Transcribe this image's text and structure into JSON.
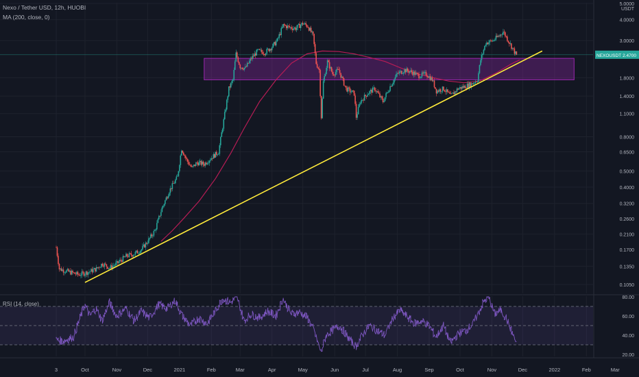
{
  "chart_data": [
    {
      "type": "candlestick",
      "title": "Nexo / Tether USD, 12h, HUOBI",
      "indicator_label": "MA (200, close, 0)",
      "axis_unit": "USDT",
      "y_scale": "log",
      "ylim": [
        0.09,
        5.0
      ],
      "y_ticks": [
        "5.0000",
        "4.0000",
        "3.0000",
        "1.8000",
        "1.4000",
        "1.1000",
        "0.8000",
        "0.6500",
        "0.5000",
        "0.4000",
        "0.3200",
        "0.2600",
        "0.2100",
        "0.1700",
        "0.1350",
        "0.1050"
      ],
      "y_tick_values": [
        5.0,
        4.0,
        3.0,
        1.8,
        1.4,
        1.1,
        0.8,
        0.65,
        0.5,
        0.4,
        0.32,
        0.26,
        0.21,
        0.17,
        0.135,
        0.105
      ],
      "x_ticks": [
        "3",
        "Oct",
        "Nov",
        "Dec",
        "2021",
        "Feb",
        "Mar",
        "Apr",
        "May",
        "Jun",
        "Jul",
        "Aug",
        "Sep",
        "Oct",
        "Nov",
        "Dec",
        "2022",
        "Feb",
        "Mar"
      ],
      "x_tick_dates": [
        "2020-09-03",
        "2020-10-01",
        "2020-11-01",
        "2020-12-01",
        "2021-01-01",
        "2021-02-01",
        "2021-03-01",
        "2021-04-01",
        "2021-05-01",
        "2021-06-01",
        "2021-07-01",
        "2021-08-01",
        "2021-09-01",
        "2021-10-01",
        "2021-11-01",
        "2021-12-01",
        "2022-01-01",
        "2022-02-01",
        "2022-03-01"
      ],
      "price_line": {
        "symbol": "NEXOUSDT",
        "value": 2.47,
        "label": "2.4700"
      },
      "colors": {
        "up": "#26a69a",
        "down": "#ef5350",
        "ma": "#b71c55",
        "trendline": "#ffeb3b",
        "zone": "#9c27b0",
        "price_label_bg": "#26a69a"
      },
      "price_series": [
        {
          "x": "2020-09-03",
          "y": 0.175
        },
        {
          "x": "2020-09-06",
          "y": 0.13
        },
        {
          "x": "2020-09-15",
          "y": 0.125
        },
        {
          "x": "2020-09-25",
          "y": 0.12
        },
        {
          "x": "2020-10-05",
          "y": 0.125
        },
        {
          "x": "2020-10-12",
          "y": 0.13
        },
        {
          "x": "2020-10-18",
          "y": 0.14
        },
        {
          "x": "2020-10-25",
          "y": 0.132
        },
        {
          "x": "2020-11-01",
          "y": 0.14
        },
        {
          "x": "2020-11-10",
          "y": 0.155
        },
        {
          "x": "2020-11-18",
          "y": 0.16
        },
        {
          "x": "2020-11-25",
          "y": 0.17
        },
        {
          "x": "2020-12-01",
          "y": 0.19
        },
        {
          "x": "2020-12-08",
          "y": 0.22
        },
        {
          "x": "2020-12-15",
          "y": 0.3
        },
        {
          "x": "2020-12-22",
          "y": 0.38
        },
        {
          "x": "2020-12-30",
          "y": 0.46
        },
        {
          "x": "2021-01-03",
          "y": 0.68
        },
        {
          "x": "2021-01-08",
          "y": 0.58
        },
        {
          "x": "2021-01-13",
          "y": 0.52
        },
        {
          "x": "2021-01-18",
          "y": 0.56
        },
        {
          "x": "2021-01-25",
          "y": 0.55
        },
        {
          "x": "2021-02-01",
          "y": 0.6
        },
        {
          "x": "2021-02-08",
          "y": 0.65
        },
        {
          "x": "2021-02-13",
          "y": 1.0
        },
        {
          "x": "2021-02-18",
          "y": 1.55
        },
        {
          "x": "2021-02-22",
          "y": 1.75
        },
        {
          "x": "2021-02-25",
          "y": 2.5
        },
        {
          "x": "2021-03-01",
          "y": 2.1
        },
        {
          "x": "2021-03-06",
          "y": 2.05
        },
        {
          "x": "2021-03-12",
          "y": 2.35
        },
        {
          "x": "2021-03-18",
          "y": 2.6
        },
        {
          "x": "2021-03-25",
          "y": 2.55
        },
        {
          "x": "2021-04-01",
          "y": 2.75
        },
        {
          "x": "2021-04-06",
          "y": 3.0
        },
        {
          "x": "2021-04-12",
          "y": 3.7
        },
        {
          "x": "2021-04-18",
          "y": 3.6
        },
        {
          "x": "2021-04-24",
          "y": 3.55
        },
        {
          "x": "2021-05-01",
          "y": 3.8
        },
        {
          "x": "2021-05-06",
          "y": 3.65
        },
        {
          "x": "2021-05-11",
          "y": 3.2
        },
        {
          "x": "2021-05-14",
          "y": 2.2
        },
        {
          "x": "2021-05-17",
          "y": 2.0
        },
        {
          "x": "2021-05-19",
          "y": 1.05
        },
        {
          "x": "2021-05-21",
          "y": 1.7
        },
        {
          "x": "2021-05-25",
          "y": 2.25
        },
        {
          "x": "2021-05-30",
          "y": 1.9
        },
        {
          "x": "2021-06-05",
          "y": 2.0
        },
        {
          "x": "2021-06-12",
          "y": 1.55
        },
        {
          "x": "2021-06-20",
          "y": 1.45
        },
        {
          "x": "2021-06-22",
          "y": 1.05
        },
        {
          "x": "2021-06-26",
          "y": 1.3
        },
        {
          "x": "2021-07-03",
          "y": 1.45
        },
        {
          "x": "2021-07-10",
          "y": 1.55
        },
        {
          "x": "2021-07-18",
          "y": 1.3
        },
        {
          "x": "2021-07-25",
          "y": 1.6
        },
        {
          "x": "2021-08-01",
          "y": 1.9
        },
        {
          "x": "2021-08-08",
          "y": 2.0
        },
        {
          "x": "2021-08-15",
          "y": 1.95
        },
        {
          "x": "2021-08-22",
          "y": 1.85
        },
        {
          "x": "2021-08-29",
          "y": 1.9
        },
        {
          "x": "2021-09-04",
          "y": 1.75
        },
        {
          "x": "2021-09-08",
          "y": 1.5
        },
        {
          "x": "2021-09-15",
          "y": 1.55
        },
        {
          "x": "2021-09-22",
          "y": 1.4
        },
        {
          "x": "2021-09-29",
          "y": 1.55
        },
        {
          "x": "2021-10-06",
          "y": 1.6
        },
        {
          "x": "2021-10-12",
          "y": 1.65
        },
        {
          "x": "2021-10-18",
          "y": 1.75
        },
        {
          "x": "2021-10-21",
          "y": 2.3
        },
        {
          "x": "2021-10-26",
          "y": 2.9
        },
        {
          "x": "2021-11-02",
          "y": 3.0
        },
        {
          "x": "2021-11-08",
          "y": 3.2
        },
        {
          "x": "2021-11-12",
          "y": 3.4
        },
        {
          "x": "2021-11-17",
          "y": 3.0
        },
        {
          "x": "2021-11-21",
          "y": 2.7
        },
        {
          "x": "2021-11-25",
          "y": 2.45
        }
      ],
      "ma_series": [
        {
          "x": "2020-12-14",
          "y": 0.19
        },
        {
          "x": "2020-12-25",
          "y": 0.22
        },
        {
          "x": "2021-01-05",
          "y": 0.26
        },
        {
          "x": "2021-01-20",
          "y": 0.33
        },
        {
          "x": "2021-02-05",
          "y": 0.45
        },
        {
          "x": "2021-02-20",
          "y": 0.64
        },
        {
          "x": "2021-03-05",
          "y": 0.9
        },
        {
          "x": "2021-03-20",
          "y": 1.3
        },
        {
          "x": "2021-04-05",
          "y": 1.75
        },
        {
          "x": "2021-04-20",
          "y": 2.2
        },
        {
          "x": "2021-05-05",
          "y": 2.5
        },
        {
          "x": "2021-05-20",
          "y": 2.6
        },
        {
          "x": "2021-06-05",
          "y": 2.58
        },
        {
          "x": "2021-06-20",
          "y": 2.5
        },
        {
          "x": "2021-07-05",
          "y": 2.38
        },
        {
          "x": "2021-07-20",
          "y": 2.25
        },
        {
          "x": "2021-08-05",
          "y": 2.05
        },
        {
          "x": "2021-08-20",
          "y": 1.9
        },
        {
          "x": "2021-09-05",
          "y": 1.8
        },
        {
          "x": "2021-09-20",
          "y": 1.72
        },
        {
          "x": "2021-10-05",
          "y": 1.68
        },
        {
          "x": "2021-10-20",
          "y": 1.72
        },
        {
          "x": "2021-11-05",
          "y": 1.92
        },
        {
          "x": "2021-11-20",
          "y": 2.18
        },
        {
          "x": "2021-11-28",
          "y": 2.3
        }
      ],
      "trendline": [
        {
          "x": "2020-10-01",
          "y": 0.108
        },
        {
          "x": "2021-12-20",
          "y": 2.6
        }
      ],
      "zone": {
        "x0": "2021-01-25",
        "y0": 1.75,
        "x1": "2022-01-20",
        "y1": 2.35
      }
    },
    {
      "type": "line",
      "title": "RSI (14, close)",
      "ylim": [
        20,
        80
      ],
      "y_ticks": [
        "80.00",
        "60.00",
        "40.00",
        "20.00"
      ],
      "y_tick_values": [
        80,
        60,
        40,
        20
      ],
      "bands": {
        "upper": 70,
        "middle": 50,
        "lower": 30
      },
      "colors": {
        "line": "#7e57c2",
        "band": "#7e57c2"
      },
      "series": [
        {
          "x": "2020-09-03",
          "y": 35
        },
        {
          "x": "2020-09-10",
          "y": 34
        },
        {
          "x": "2020-09-20",
          "y": 38
        },
        {
          "x": "2020-10-01",
          "y": 72
        },
        {
          "x": "2020-10-06",
          "y": 60
        },
        {
          "x": "2020-10-12",
          "y": 68
        },
        {
          "x": "2020-10-18",
          "y": 55
        },
        {
          "x": "2020-10-25",
          "y": 74
        },
        {
          "x": "2020-11-01",
          "y": 60
        },
        {
          "x": "2020-11-10",
          "y": 68
        },
        {
          "x": "2020-11-18",
          "y": 55
        },
        {
          "x": "2020-11-25",
          "y": 65
        },
        {
          "x": "2020-12-03",
          "y": 58
        },
        {
          "x": "2020-12-12",
          "y": 72
        },
        {
          "x": "2020-12-20",
          "y": 68
        },
        {
          "x": "2020-12-28",
          "y": 76
        },
        {
          "x": "2021-01-04",
          "y": 60
        },
        {
          "x": "2021-01-12",
          "y": 50
        },
        {
          "x": "2021-01-20",
          "y": 58
        },
        {
          "x": "2021-01-28",
          "y": 52
        },
        {
          "x": "2021-02-05",
          "y": 65
        },
        {
          "x": "2021-02-12",
          "y": 78
        },
        {
          "x": "2021-02-20",
          "y": 74
        },
        {
          "x": "2021-02-26",
          "y": 80
        },
        {
          "x": "2021-03-05",
          "y": 55
        },
        {
          "x": "2021-03-12",
          "y": 62
        },
        {
          "x": "2021-03-20",
          "y": 58
        },
        {
          "x": "2021-03-28",
          "y": 65
        },
        {
          "x": "2021-04-05",
          "y": 60
        },
        {
          "x": "2021-04-12",
          "y": 78
        },
        {
          "x": "2021-04-20",
          "y": 62
        },
        {
          "x": "2021-04-28",
          "y": 64
        },
        {
          "x": "2021-05-06",
          "y": 58
        },
        {
          "x": "2021-05-12",
          "y": 45
        },
        {
          "x": "2021-05-19",
          "y": 22
        },
        {
          "x": "2021-05-24",
          "y": 40
        },
        {
          "x": "2021-05-30",
          "y": 45
        },
        {
          "x": "2021-06-06",
          "y": 50
        },
        {
          "x": "2021-06-14",
          "y": 38
        },
        {
          "x": "2021-06-22",
          "y": 28
        },
        {
          "x": "2021-06-28",
          "y": 40
        },
        {
          "x": "2021-07-05",
          "y": 50
        },
        {
          "x": "2021-07-12",
          "y": 45
        },
        {
          "x": "2021-07-20",
          "y": 40
        },
        {
          "x": "2021-07-28",
          "y": 58
        },
        {
          "x": "2021-08-04",
          "y": 66
        },
        {
          "x": "2021-08-10",
          "y": 60
        },
        {
          "x": "2021-08-18",
          "y": 52
        },
        {
          "x": "2021-08-25",
          "y": 55
        },
        {
          "x": "2021-09-01",
          "y": 50
        },
        {
          "x": "2021-09-08",
          "y": 38
        },
        {
          "x": "2021-09-15",
          "y": 50
        },
        {
          "x": "2021-09-22",
          "y": 32
        },
        {
          "x": "2021-09-30",
          "y": 42
        },
        {
          "x": "2021-10-07",
          "y": 45
        },
        {
          "x": "2021-10-14",
          "y": 52
        },
        {
          "x": "2021-10-20",
          "y": 65
        },
        {
          "x": "2021-10-24",
          "y": 74
        },
        {
          "x": "2021-10-29",
          "y": 80
        },
        {
          "x": "2021-11-04",
          "y": 62
        },
        {
          "x": "2021-11-10",
          "y": 66
        },
        {
          "x": "2021-11-15",
          "y": 58
        },
        {
          "x": "2021-11-20",
          "y": 45
        },
        {
          "x": "2021-11-25",
          "y": 32
        }
      ]
    }
  ]
}
